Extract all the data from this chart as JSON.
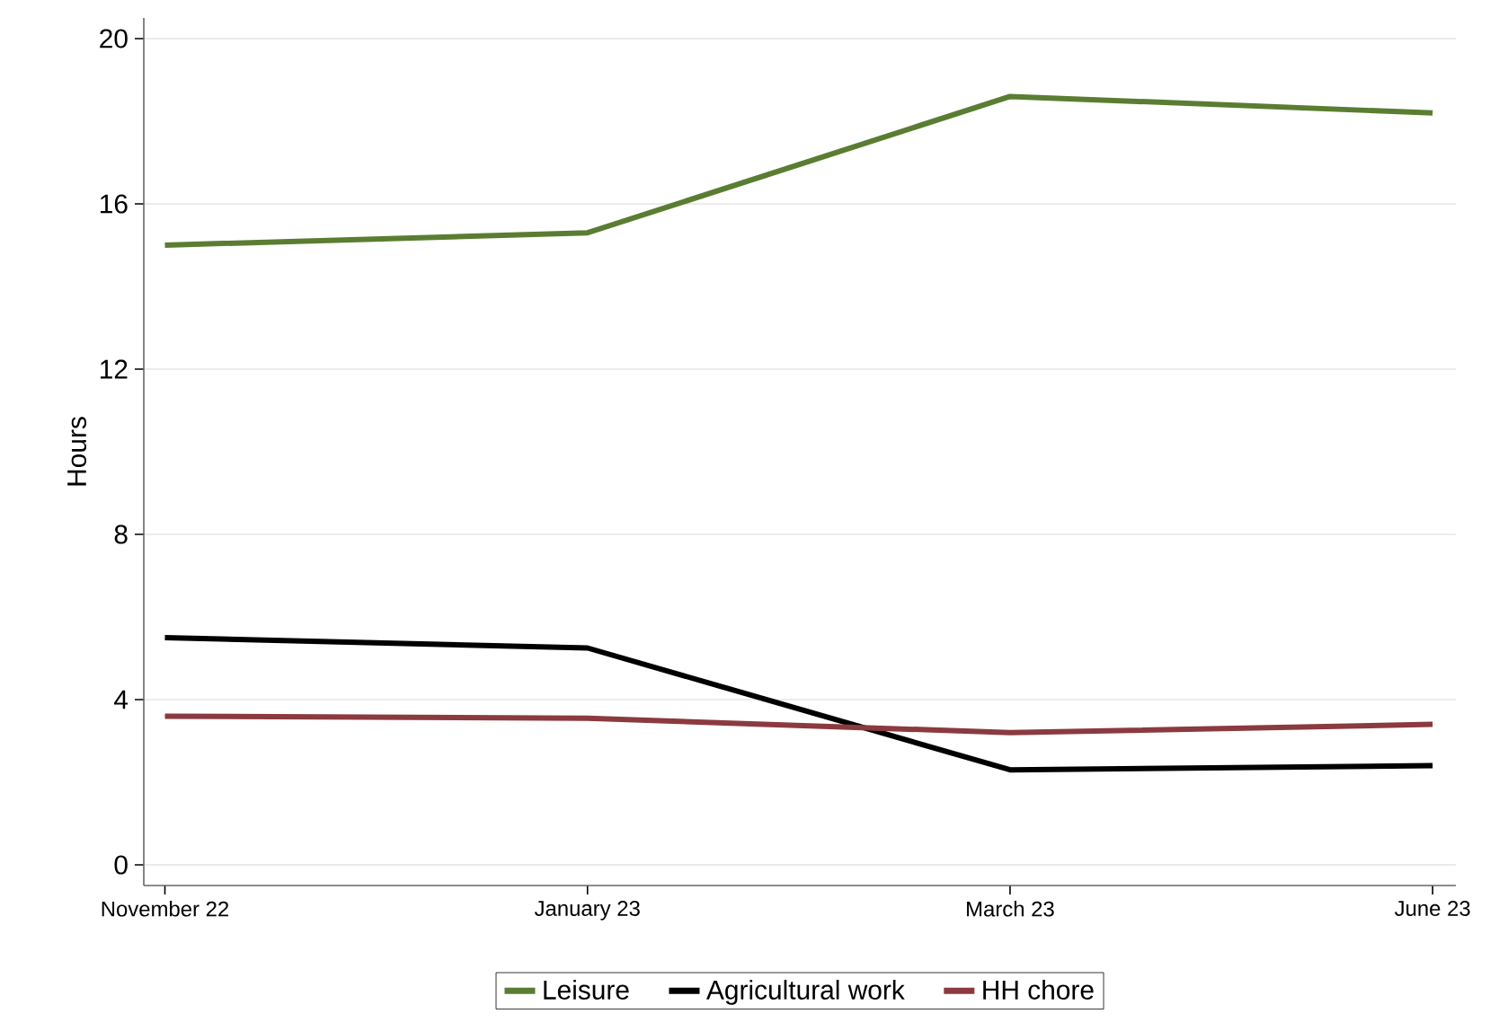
{
  "chart_data": {
    "type": "line",
    "ylabel": "Hours",
    "categories": [
      "November 22",
      "January 23",
      "March 23",
      "June 23"
    ],
    "series": [
      {
        "name": "Leisure",
        "color": "#5a7d32",
        "values": [
          15.0,
          15.3,
          18.6,
          18.2
        ]
      },
      {
        "name": "Agricultural work",
        "color": "#000000",
        "values": [
          5.5,
          5.25,
          2.3,
          2.4
        ]
      },
      {
        "name": "HH chore",
        "color": "#8b3a3f",
        "values": [
          3.6,
          3.55,
          3.2,
          3.4
        ]
      }
    ],
    "ylim": [
      -0.5,
      20.5
    ],
    "yticks": [
      0,
      4,
      8,
      12,
      16,
      20
    ],
    "grid": "y",
    "legend": "bottom",
    "line_style": "solid",
    "marker": "none"
  }
}
